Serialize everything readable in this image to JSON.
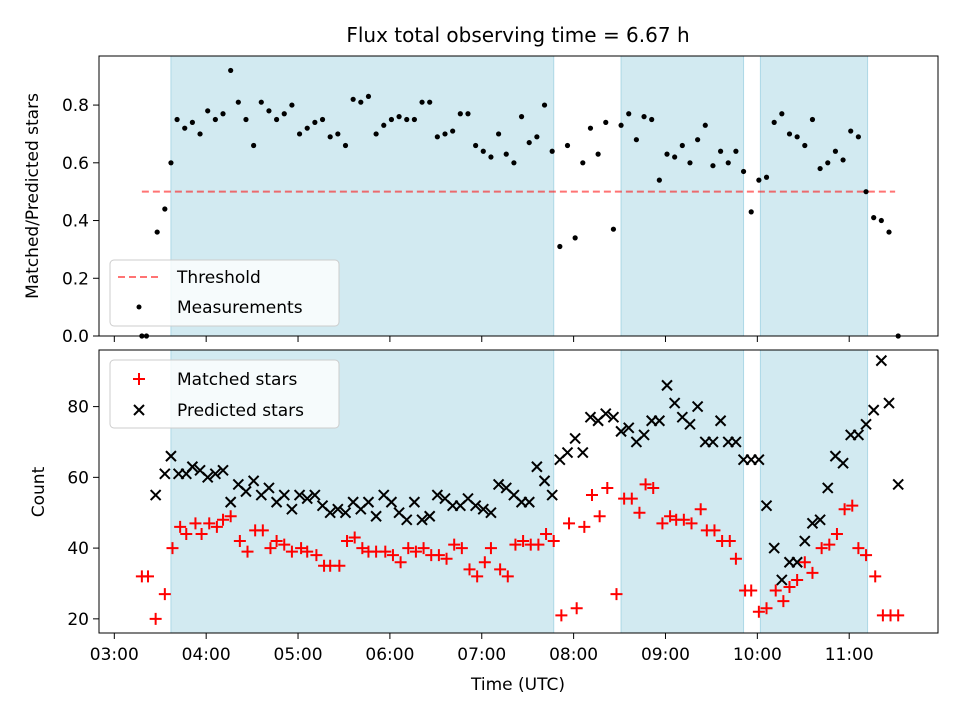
{
  "title": "Flux total observing time = 6.67 h",
  "xlabel": "Time (UTC)",
  "colors": {
    "shade": "#add8e6",
    "threshold": "#ff0000",
    "measurements": "#000000",
    "matched": "#ff0000",
    "predicted": "#000000"
  },
  "chart_data": [
    {
      "type": "scatter",
      "ylabel": "Matched/Predicted stars",
      "xlim": [
        "02:50",
        "11:58"
      ],
      "ylim": [
        0,
        0.97
      ],
      "yticks": [
        0.0,
        0.2,
        0.4,
        0.6,
        0.8
      ],
      "ytick_labels": [
        "0.0",
        "0.2",
        "0.4",
        "0.6",
        "0.8"
      ],
      "grid": false,
      "legend": "lower-left",
      "shaded_intervals": [
        [
          "03:37",
          "07:47"
        ],
        [
          "08:31",
          "09:51"
        ],
        [
          "10:02",
          "11:12"
        ]
      ],
      "series": [
        {
          "name": "Threshold",
          "style": "dashed-line",
          "x": [
            "03:18",
            "11:30"
          ],
          "values": [
            0.5,
            0.5
          ]
        },
        {
          "name": "Measurements",
          "style": "dot",
          "x": [
            "03:18",
            "03:21",
            "03:28",
            "03:33",
            "03:37",
            "03:41",
            "03:46",
            "03:51",
            "03:56",
            "04:01",
            "04:06",
            "04:11",
            "04:16",
            "04:21",
            "04:26",
            "04:31",
            "04:36",
            "04:41",
            "04:46",
            "04:51",
            "04:56",
            "05:01",
            "05:06",
            "05:11",
            "05:16",
            "05:21",
            "05:26",
            "05:31",
            "05:36",
            "05:41",
            "05:46",
            "05:51",
            "05:56",
            "06:01",
            "06:06",
            "06:11",
            "06:16",
            "06:21",
            "06:26",
            "06:31",
            "06:36",
            "06:41",
            "06:46",
            "06:51",
            "06:56",
            "07:01",
            "07:06",
            "07:11",
            "07:16",
            "07:21",
            "07:26",
            "07:31",
            "07:36",
            "07:41",
            "07:46",
            "07:51",
            "07:56",
            "08:01",
            "08:06",
            "08:11",
            "08:16",
            "08:21",
            "08:26",
            "08:31",
            "08:36",
            "08:41",
            "08:46",
            "08:51",
            "08:56",
            "09:01",
            "09:06",
            "09:11",
            "09:16",
            "09:21",
            "09:26",
            "09:31",
            "09:36",
            "09:41",
            "09:46",
            "09:51",
            "09:56",
            "10:01",
            "10:06",
            "10:11",
            "10:16",
            "10:21",
            "10:26",
            "10:31",
            "10:36",
            "10:41",
            "10:46",
            "10:51",
            "10:56",
            "11:01",
            "11:06",
            "11:11",
            "11:16",
            "11:21",
            "11:26",
            "11:32"
          ],
          "values": [
            0.0,
            0.0,
            0.36,
            0.44,
            0.6,
            0.75,
            0.72,
            0.74,
            0.7,
            0.78,
            0.75,
            0.77,
            0.92,
            0.81,
            0.75,
            0.66,
            0.81,
            0.78,
            0.75,
            0.77,
            0.8,
            0.7,
            0.72,
            0.74,
            0.75,
            0.69,
            0.7,
            0.66,
            0.82,
            0.81,
            0.83,
            0.7,
            0.73,
            0.75,
            0.76,
            0.75,
            0.75,
            0.81,
            0.81,
            0.69,
            0.7,
            0.71,
            0.77,
            0.77,
            0.66,
            0.64,
            0.62,
            0.7,
            0.63,
            0.6,
            0.76,
            0.67,
            0.69,
            0.8,
            0.64,
            0.31,
            0.66,
            0.34,
            0.6,
            0.72,
            0.63,
            0.74,
            0.37,
            0.73,
            0.77,
            0.68,
            0.76,
            0.75,
            0.54,
            0.63,
            0.62,
            0.66,
            0.6,
            0.68,
            0.73,
            0.59,
            0.64,
            0.6,
            0.64,
            0.57,
            0.43,
            0.54,
            0.55,
            0.74,
            0.77,
            0.7,
            0.69,
            0.66,
            0.75,
            0.58,
            0.6,
            0.64,
            0.61,
            0.71,
            0.69,
            0.5,
            0.41,
            0.4,
            0.36,
            0.0
          ]
        }
      ]
    },
    {
      "type": "scatter",
      "ylabel": "Count",
      "xlim": [
        "02:50",
        "11:58"
      ],
      "ylim": [
        16,
        96
      ],
      "yticks": [
        20,
        40,
        60,
        80
      ],
      "ytick_labels": [
        "20",
        "40",
        "60",
        "80"
      ],
      "xticks": [
        "03:00",
        "04:00",
        "05:00",
        "06:00",
        "07:00",
        "08:00",
        "09:00",
        "10:00",
        "11:00"
      ],
      "xtick_labels": [
        "03:00",
        "04:00",
        "05:00",
        "06:00",
        "07:00",
        "08:00",
        "09:00",
        "10:00",
        "11:00"
      ],
      "grid": false,
      "legend": "upper-left",
      "shaded_intervals": [
        [
          "03:37",
          "07:47"
        ],
        [
          "08:31",
          "09:51"
        ],
        [
          "10:02",
          "11:12"
        ]
      ],
      "series": [
        {
          "name": "Matched stars",
          "style": "plus",
          "x": [
            "03:18",
            "03:22",
            "03:27",
            "03:33",
            "03:38",
            "03:43",
            "03:47",
            "03:53",
            "03:57",
            "04:02",
            "04:07",
            "04:11",
            "04:16",
            "04:22",
            "04:27",
            "04:32",
            "04:37",
            "04:42",
            "04:46",
            "04:51",
            "04:56",
            "05:02",
            "05:06",
            "05:12",
            "05:17",
            "05:21",
            "05:27",
            "05:32",
            "05:37",
            "05:42",
            "05:46",
            "05:51",
            "05:57",
            "06:02",
            "06:07",
            "06:12",
            "06:17",
            "06:22",
            "06:27",
            "06:32",
            "06:37",
            "06:42",
            "06:47",
            "06:52",
            "06:57",
            "07:02",
            "07:06",
            "07:12",
            "07:17",
            "07:22",
            "07:27",
            "07:32",
            "07:37",
            "07:42",
            "07:47",
            "07:52",
            "07:57",
            "08:02",
            "08:07",
            "08:12",
            "08:17",
            "08:22",
            "08:28",
            "08:33",
            "08:38",
            "08:43",
            "08:47",
            "08:52",
            "08:58",
            "09:03",
            "09:07",
            "09:12",
            "09:17",
            "09:23",
            "09:27",
            "09:32",
            "09:37",
            "09:42",
            "09:46",
            "09:52",
            "09:56",
            "10:01",
            "10:06",
            "10:12",
            "10:17",
            "10:21",
            "10:26",
            "10:31",
            "10:36",
            "10:42",
            "10:47",
            "10:52",
            "10:57",
            "11:02",
            "11:06",
            "11:11",
            "11:17",
            "11:22",
            "11:27",
            "11:32"
          ],
          "values": [
            32,
            32,
            20,
            27,
            40,
            46,
            44,
            47,
            44,
            47,
            46,
            48,
            49,
            42,
            39,
            45,
            45,
            40,
            42,
            41,
            39,
            40,
            39,
            38,
            35,
            35,
            35,
            42,
            43,
            40,
            39,
            39,
            39,
            38,
            36,
            40,
            39,
            40,
            38,
            38,
            37,
            41,
            40,
            34,
            32,
            36,
            40,
            34,
            32,
            41,
            42,
            41,
            41,
            44,
            42,
            21,
            47,
            23,
            46,
            55,
            49,
            57,
            27,
            54,
            54,
            50,
            58,
            57,
            47,
            49,
            48,
            48,
            47,
            51,
            45,
            45,
            42,
            42,
            37,
            28,
            28,
            22,
            23,
            28,
            25,
            29,
            31,
            36,
            33,
            40,
            41,
            44,
            51,
            52,
            40,
            38,
            32,
            21,
            21,
            21
          ],
          "hidden_note": ""
        },
        {
          "name": "Predicted stars",
          "style": "x",
          "x": [
            "03:27",
            "03:33",
            "03:37",
            "03:42",
            "03:47",
            "03:51",
            "03:56",
            "04:01",
            "04:06",
            "04:11",
            "04:16",
            "04:21",
            "04:26",
            "04:31",
            "04:36",
            "04:41",
            "04:46",
            "04:51",
            "04:56",
            "05:01",
            "05:06",
            "05:11",
            "05:16",
            "05:21",
            "05:26",
            "05:31",
            "05:36",
            "05:41",
            "05:46",
            "05:51",
            "05:56",
            "06:01",
            "06:06",
            "06:11",
            "06:16",
            "06:21",
            "06:26",
            "06:31",
            "06:36",
            "06:41",
            "06:46",
            "06:51",
            "06:56",
            "07:01",
            "07:06",
            "07:11",
            "07:16",
            "07:21",
            "07:26",
            "07:31",
            "07:36",
            "07:41",
            "07:46",
            "07:51",
            "07:56",
            "08:01",
            "08:06",
            "08:11",
            "08:16",
            "08:21",
            "08:26",
            "08:31",
            "08:36",
            "08:41",
            "08:46",
            "08:51",
            "08:56",
            "09:01",
            "09:06",
            "09:11",
            "09:16",
            "09:21",
            "09:26",
            "09:31",
            "09:36",
            "09:41",
            "09:46",
            "09:51",
            "09:56",
            "10:01",
            "10:06",
            "10:11",
            "10:16",
            "10:21",
            "10:26",
            "10:31",
            "10:36",
            "10:41",
            "10:46",
            "10:51",
            "10:56",
            "11:01",
            "11:06",
            "11:11",
            "11:16",
            "11:21",
            "11:26",
            "11:32"
          ],
          "values": [
            55,
            61,
            66,
            61,
            61,
            63,
            62,
            60,
            61,
            62,
            53,
            58,
            56,
            59,
            55,
            57,
            53,
            55,
            51,
            55,
            54,
            55,
            52,
            50,
            51,
            50,
            53,
            51,
            53,
            49,
            55,
            53,
            50,
            48,
            53,
            48,
            49,
            55,
            54,
            52,
            52,
            54,
            52,
            51,
            50,
            58,
            57,
            55,
            53,
            53,
            63,
            59,
            55,
            65,
            67,
            71,
            67,
            77,
            76,
            78,
            77,
            73,
            74,
            70,
            72,
            76,
            76,
            86,
            81,
            77,
            75,
            80,
            70,
            70,
            76,
            70,
            70,
            65,
            65,
            65,
            52,
            40,
            31,
            36,
            36,
            42,
            47,
            48,
            57,
            66,
            64,
            72,
            72,
            75,
            79,
            93,
            81,
            58
          ]
        }
      ]
    }
  ]
}
